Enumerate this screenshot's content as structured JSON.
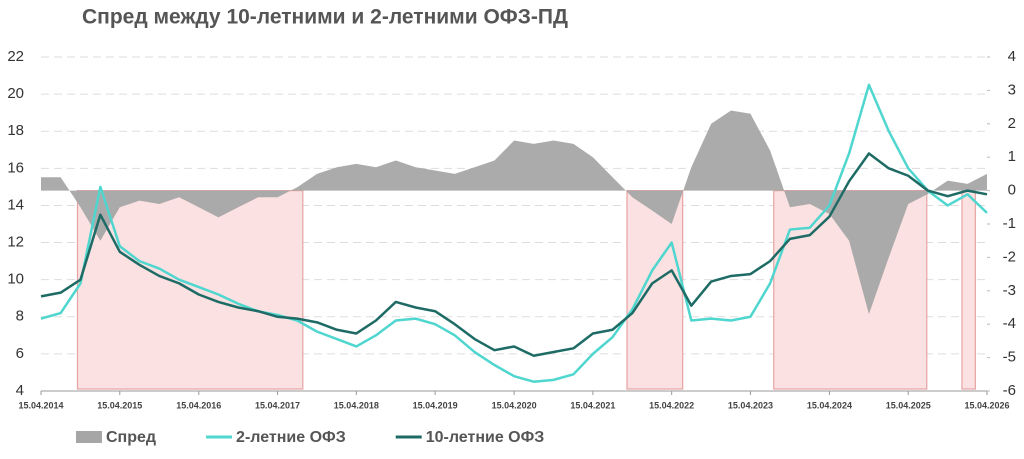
{
  "chart_data": {
    "type": "line",
    "title": "Спред между 10-летними и 2-летними ОФЗ-ПД",
    "x": [
      "2014-04-15",
      "2014-07-15",
      "2014-10-15",
      "2015-01-15",
      "2015-04-15",
      "2015-07-15",
      "2015-10-15",
      "2016-01-15",
      "2016-04-15",
      "2016-07-15",
      "2016-10-15",
      "2017-01-15",
      "2017-04-15",
      "2017-07-15",
      "2017-10-15",
      "2018-01-15",
      "2018-04-15",
      "2018-07-15",
      "2018-10-15",
      "2019-01-15",
      "2019-04-15",
      "2019-07-15",
      "2019-10-15",
      "2020-01-15",
      "2020-04-15",
      "2020-07-15",
      "2020-10-15",
      "2021-01-15",
      "2021-04-15",
      "2021-07-15",
      "2021-10-15",
      "2022-01-15",
      "2022-04-15",
      "2022-07-15",
      "2022-10-15",
      "2023-01-15",
      "2023-04-15",
      "2023-07-15",
      "2023-10-15",
      "2024-01-15",
      "2024-04-15",
      "2024-07-15",
      "2024-10-15",
      "2025-01-15",
      "2025-04-15",
      "2025-07-15",
      "2025-10-15",
      "2026-01-15",
      "2026-04-15"
    ],
    "series": [
      {
        "name": "Спред",
        "type": "area",
        "axis": "y2",
        "color": "#a6a6a6",
        "values": [
          0.4,
          0.4,
          -0.5,
          -1.5,
          -0.5,
          -0.3,
          -0.4,
          -0.2,
          -0.5,
          -0.8,
          -0.5,
          -0.2,
          -0.2,
          0.1,
          0.5,
          0.7,
          0.8,
          0.7,
          0.9,
          0.7,
          0.6,
          0.5,
          0.7,
          0.9,
          1.5,
          1.4,
          1.5,
          1.4,
          1.0,
          0.4,
          -0.2,
          -0.6,
          -1.0,
          0.7,
          2.0,
          2.4,
          2.3,
          1.2,
          -0.5,
          -0.4,
          -0.7,
          -1.5,
          -3.7,
          -2.0,
          -0.4,
          -0.1,
          0.3,
          0.2,
          0.5
        ]
      },
      {
        "name": "2-летние ОФЗ",
        "type": "line",
        "color": "#4fd6cf",
        "values": [
          7.9,
          8.2,
          9.8,
          15.0,
          11.8,
          11.0,
          10.6,
          10.0,
          9.6,
          9.2,
          8.7,
          8.3,
          8.1,
          7.8,
          7.2,
          6.8,
          6.4,
          7.0,
          7.8,
          7.9,
          7.6,
          7.0,
          6.1,
          5.4,
          4.8,
          4.5,
          4.6,
          4.9,
          6.0,
          6.9,
          8.4,
          10.5,
          12.0,
          7.8,
          7.9,
          7.8,
          8.0,
          9.8,
          12.7,
          12.8,
          14.0,
          16.8,
          20.5,
          18.0,
          16.0,
          14.8,
          14.0,
          14.6,
          13.6
        ]
      },
      {
        "name": "10-летние ОФЗ",
        "type": "line",
        "color": "#1e6b66",
        "values": [
          9.1,
          9.3,
          10.0,
          13.5,
          11.5,
          10.8,
          10.2,
          9.8,
          9.2,
          8.8,
          8.5,
          8.3,
          8.0,
          7.9,
          7.7,
          7.3,
          7.1,
          7.8,
          8.8,
          8.5,
          8.3,
          7.6,
          6.8,
          6.2,
          6.4,
          5.9,
          6.1,
          6.3,
          7.1,
          7.3,
          8.2,
          9.8,
          10.5,
          8.6,
          9.9,
          10.2,
          10.3,
          11.0,
          12.2,
          12.4,
          13.4,
          15.3,
          16.8,
          16.0,
          15.6,
          14.8,
          14.5,
          14.8,
          14.6
        ]
      }
    ],
    "shaded_regions": [
      {
        "start": "2014-10-01",
        "end": "2017-08-10"
      },
      {
        "start": "2021-09-20",
        "end": "2022-06-05"
      },
      {
        "start": "2023-08-01",
        "end": "2025-07-10"
      },
      {
        "start": "2025-12-20",
        "end": "2026-02-20"
      }
    ],
    "shade_color": "#fbe1e1",
    "xlim": [
      "2014-04-15",
      "2026-04-15"
    ],
    "xticks": [
      {
        "value": "2014-04-15",
        "label": "15.04.2014"
      },
      {
        "value": "2015-04-15",
        "label": "15.04.2015"
      },
      {
        "value": "2016-04-15",
        "label": "15.04.2016"
      },
      {
        "value": "2017-04-15",
        "label": "15.04.2017"
      },
      {
        "value": "2018-04-15",
        "label": "15.04.2018"
      },
      {
        "value": "2019-04-15",
        "label": "15.04.2019"
      },
      {
        "value": "2020-04-15",
        "label": "15.04.2020"
      },
      {
        "value": "2021-04-15",
        "label": "15.04.2021"
      },
      {
        "value": "2022-04-15",
        "label": "15.04.2022"
      },
      {
        "value": "2023-04-15",
        "label": "15.04.2023"
      },
      {
        "value": "2024-04-15",
        "label": "15.04.2024"
      },
      {
        "value": "2025-04-15",
        "label": "15.04.2025"
      },
      {
        "value": "2026-04-15",
        "label": "15.04.2026"
      }
    ],
    "ylim": [
      4,
      22
    ],
    "yticks": [
      4,
      6,
      8,
      10,
      12,
      14,
      16,
      18,
      20,
      22
    ],
    "y2lim": [
      -6,
      4
    ],
    "y2ticks": [
      -6,
      -5,
      -4,
      -3,
      -2,
      -1,
      0,
      1,
      2,
      3,
      4
    ],
    "grid": true
  }
}
